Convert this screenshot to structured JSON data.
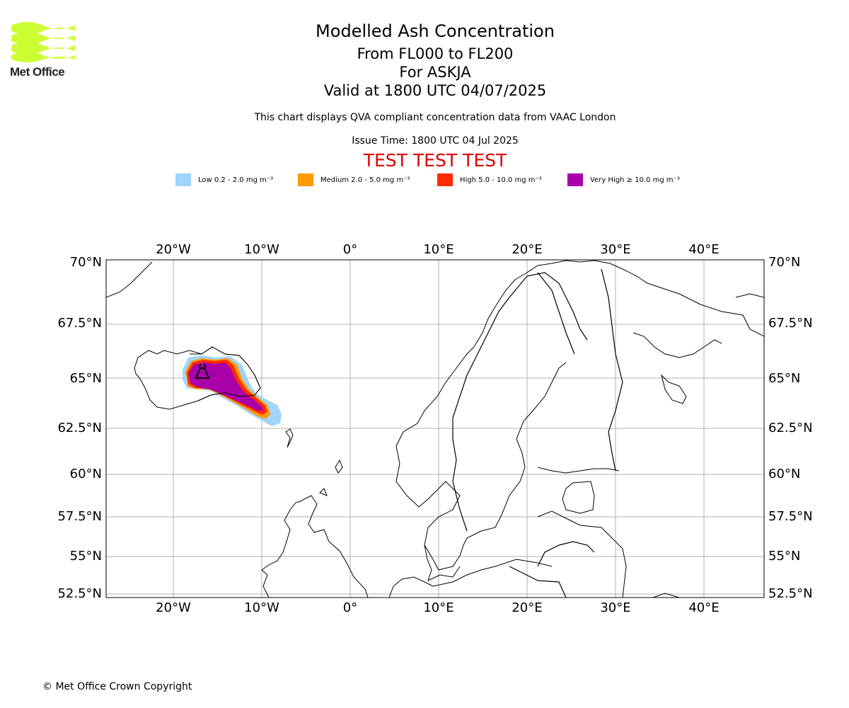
{
  "logo": {
    "text": "Met Office",
    "color": "#ccff33"
  },
  "title": {
    "line1": "Modelled Ash Concentration",
    "line2": "From FL000 to FL200",
    "line3": "For ASKJA",
    "line4": "Valid at 1800 UTC 04/07/2025"
  },
  "subtitle": "This chart displays QVA compliant concentration data from VAAC London",
  "issue_time": "Issue Time: 1800 UTC 04 Jul 2025",
  "test_banner": "TEST TEST TEST",
  "legend": [
    {
      "label": "Low 0.2 - 2.0 mg m⁻³",
      "color": "#a1d3fb"
    },
    {
      "label": "Medium 2.0 - 5.0 mg m⁻³",
      "color": "#ff9900"
    },
    {
      "label": "High 5.0 - 10.0 mg m⁻³",
      "color": "#ff2a00"
    },
    {
      "label": "Very High ≥ 10.0 mg m⁻³",
      "color": "#aa00aa"
    }
  ],
  "map": {
    "lon_labels": [
      "20°W",
      "10°W",
      "0°",
      "10°E",
      "20°E",
      "30°E",
      "40°E"
    ],
    "lat_labels": [
      "70°N",
      "67.5°N",
      "65°N",
      "62.5°N",
      "60°N",
      "57.5°N",
      "55°N",
      "52.5°N"
    ],
    "grid": true,
    "volcano": "ASKJA"
  },
  "copyright": "© Met Office Crown Copyright"
}
